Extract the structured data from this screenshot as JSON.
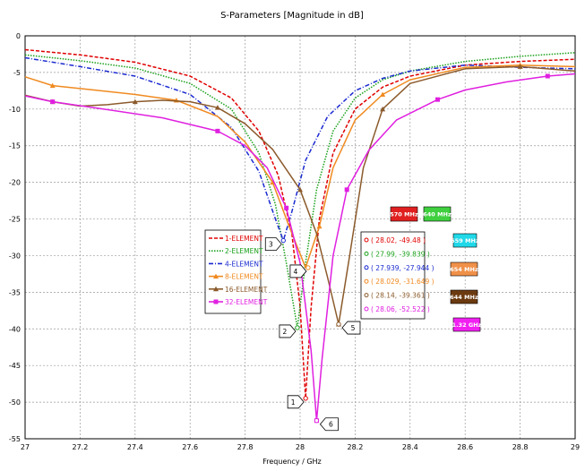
{
  "chart_data": {
    "type": "line",
    "title": "S-Parameters [Magnitude in dB]",
    "xlabel": "Frequency / GHz",
    "ylabel": "",
    "xlim": [
      27,
      29
    ],
    "ylim": [
      -55,
      0
    ],
    "x_ticks": [
      "27",
      "27.2",
      "27.4",
      "27.6",
      "27.8",
      "28",
      "28.2",
      "28.4",
      "28.6",
      "28.8",
      "29"
    ],
    "y_ticks": [
      "0",
      "-5",
      "-10",
      "-15",
      "-20",
      "-25",
      "-30",
      "-35",
      "-40",
      "-45",
      "-50",
      "-55"
    ],
    "grid": true,
    "legend_position": "center",
    "series": [
      {
        "name": "1-ELEMENT",
        "color": "#e00000",
        "dash": "4,2",
        "marker": "none",
        "points": [
          [
            27,
            -1.9
          ],
          [
            27.2,
            -2.6
          ],
          [
            27.4,
            -3.6
          ],
          [
            27.6,
            -5.5
          ],
          [
            27.75,
            -8.5
          ],
          [
            27.85,
            -13
          ],
          [
            27.92,
            -19
          ],
          [
            27.97,
            -27
          ],
          [
            28.0,
            -37
          ],
          [
            28.02,
            -49.48
          ],
          [
            28.04,
            -37
          ],
          [
            28.07,
            -25
          ],
          [
            28.12,
            -16
          ],
          [
            28.2,
            -10
          ],
          [
            28.3,
            -7
          ],
          [
            28.4,
            -5.5
          ],
          [
            28.6,
            -4
          ],
          [
            28.8,
            -3.5
          ],
          [
            29,
            -3.2
          ]
        ]
      },
      {
        "name": "2-ELEMENT",
        "color": "#1aa01a",
        "dash": "1.5,1.5",
        "marker": "none",
        "points": [
          [
            27,
            -2.6
          ],
          [
            27.2,
            -3.4
          ],
          [
            27.4,
            -4.4
          ],
          [
            27.6,
            -6.5
          ],
          [
            27.75,
            -10
          ],
          [
            27.85,
            -16
          ],
          [
            27.91,
            -23
          ],
          [
            27.95,
            -31
          ],
          [
            27.99,
            -39.839
          ],
          [
            28.02,
            -31
          ],
          [
            28.06,
            -21
          ],
          [
            28.12,
            -13
          ],
          [
            28.2,
            -8.5
          ],
          [
            28.3,
            -6
          ],
          [
            28.4,
            -4.8
          ],
          [
            28.6,
            -3.5
          ],
          [
            28.8,
            -2.8
          ],
          [
            29,
            -2.3
          ]
        ]
      },
      {
        "name": "4-ELEMENT",
        "color": "#1a2ad0",
        "dash": "5,2,1,2",
        "marker": "none",
        "points": [
          [
            27,
            -3
          ],
          [
            27.2,
            -4.2
          ],
          [
            27.4,
            -5.5
          ],
          [
            27.6,
            -8
          ],
          [
            27.75,
            -12.5
          ],
          [
            27.85,
            -18.5
          ],
          [
            27.91,
            -25
          ],
          [
            27.939,
            -27.944
          ],
          [
            27.97,
            -24
          ],
          [
            28.02,
            -17
          ],
          [
            28.1,
            -11
          ],
          [
            28.2,
            -7.5
          ],
          [
            28.3,
            -5.8
          ],
          [
            28.4,
            -4.8
          ],
          [
            28.6,
            -4
          ],
          [
            28.8,
            -4.3
          ],
          [
            29,
            -4.5
          ]
        ]
      },
      {
        "name": "8-ELEMENT",
        "color": "#f08a20",
        "dash": "",
        "marker": "triangle",
        "points": [
          [
            27,
            -5.6
          ],
          [
            27.1,
            -6.8
          ],
          [
            27.25,
            -7.4
          ],
          [
            27.4,
            -8
          ],
          [
            27.55,
            -8.8
          ],
          [
            27.7,
            -11
          ],
          [
            27.8,
            -14.5
          ],
          [
            27.9,
            -20
          ],
          [
            27.96,
            -26
          ],
          [
            28.02,
            -31.649
          ],
          [
            28.07,
            -26
          ],
          [
            28.12,
            -18
          ],
          [
            28.2,
            -11.5
          ],
          [
            28.3,
            -8
          ],
          [
            28.4,
            -6
          ],
          [
            28.6,
            -4.3
          ],
          [
            28.8,
            -4
          ],
          [
            29,
            -4.2
          ]
        ]
      },
      {
        "name": "16-ELEMENT",
        "color": "#8b5a2b",
        "dash": "",
        "marker": "triangle",
        "points": [
          [
            27,
            -8.1
          ],
          [
            27.1,
            -9
          ],
          [
            27.2,
            -9.6
          ],
          [
            27.3,
            -9.4
          ],
          [
            27.4,
            -9
          ],
          [
            27.5,
            -8.8
          ],
          [
            27.6,
            -9
          ],
          [
            27.7,
            -9.8
          ],
          [
            27.8,
            -12
          ],
          [
            27.9,
            -15.5
          ],
          [
            28.0,
            -21
          ],
          [
            28.06,
            -27
          ],
          [
            28.1,
            -33
          ],
          [
            28.14,
            -39.361
          ],
          [
            28.18,
            -30
          ],
          [
            28.23,
            -18
          ],
          [
            28.3,
            -10
          ],
          [
            28.4,
            -6.5
          ],
          [
            28.6,
            -4.5
          ],
          [
            28.8,
            -4.2
          ],
          [
            29,
            -4.8
          ]
        ]
      },
      {
        "name": "32-ELEMENT",
        "color": "#e020e0",
        "dash": "",
        "marker": "square",
        "points": [
          [
            27,
            -8.2
          ],
          [
            27.1,
            -9
          ],
          [
            27.25,
            -9.8
          ],
          [
            27.5,
            -11.2
          ],
          [
            27.7,
            -13
          ],
          [
            27.8,
            -15
          ],
          [
            27.88,
            -18
          ],
          [
            27.95,
            -23.5
          ],
          [
            28.0,
            -31
          ],
          [
            28.04,
            -43
          ],
          [
            28.06,
            -52.522
          ],
          [
            28.08,
            -44
          ],
          [
            28.12,
            -30
          ],
          [
            28.17,
            -21
          ],
          [
            28.25,
            -15.6
          ],
          [
            28.35,
            -11.5
          ],
          [
            28.5,
            -8.7
          ],
          [
            28.6,
            -7.4
          ],
          [
            28.75,
            -6.3
          ],
          [
            28.9,
            -5.5
          ],
          [
            29,
            -5.2
          ]
        ]
      }
    ],
    "markers": [
      {
        "id": "1",
        "x": 28.02,
        "y": -49.48,
        "label": "1",
        "readout": "( 28.02, -49.48 )",
        "color": "#e00000"
      },
      {
        "id": "2",
        "x": 27.99,
        "y": -39.839,
        "label": "2",
        "readout": "( 27.99, -39.839 )",
        "color": "#1aa01a"
      },
      {
        "id": "3",
        "x": 27.939,
        "y": -27.944,
        "label": "3",
        "readout": "( 27.939, -27.944 )",
        "color": "#1a2ad0"
      },
      {
        "id": "4",
        "x": 28.029,
        "y": -31.649,
        "label": "4",
        "readout": "( 28.029, -31.649 )",
        "color": "#f08a20"
      },
      {
        "id": "5",
        "x": 28.14,
        "y": -39.361,
        "label": "5",
        "readout": "( 28.14, -39.361 )",
        "color": "#8b5a2b"
      },
      {
        "id": "6",
        "x": 28.06,
        "y": -52.522,
        "label": "6",
        "readout": "( 28.06, -52.522 )",
        "color": "#e020e0"
      }
    ],
    "bandwidth_badges": [
      {
        "text": "570 MHz",
        "bg": "#e02020",
        "fg": "#ffffff"
      },
      {
        "text": "640 MHz",
        "bg": "#3fcf3f",
        "fg": "#ffffff"
      },
      {
        "text": "559 MHz",
        "bg": "#20d8e8",
        "fg": "#ffffff"
      },
      {
        "text": "654 MHz",
        "bg": "#f09048",
        "fg": "#ffffff"
      },
      {
        "text": "644 MHz",
        "bg": "#6b3a10",
        "fg": "#ffffff"
      },
      {
        "text": "1.32 GHz",
        "bg": "#f020f0",
        "fg": "#ffffff"
      }
    ]
  }
}
